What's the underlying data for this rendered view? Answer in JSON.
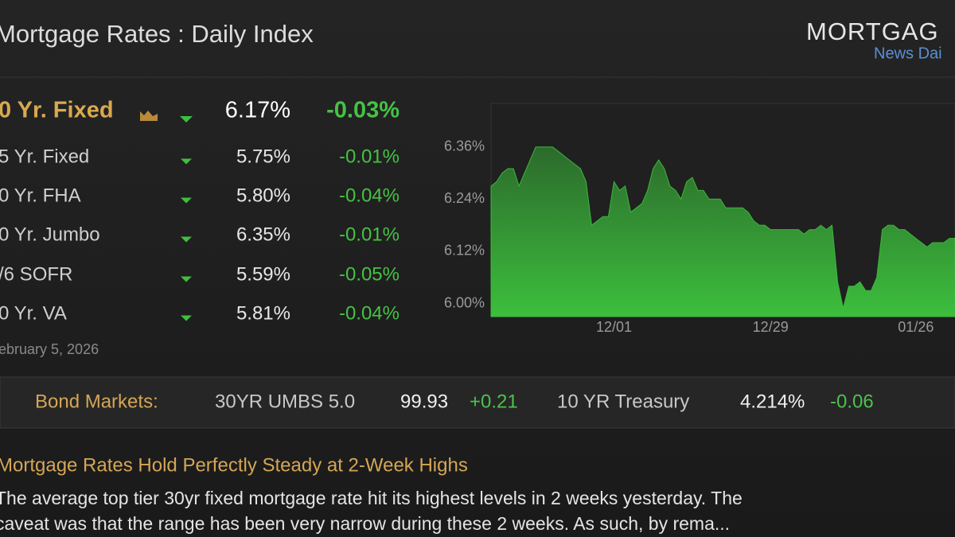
{
  "header": {
    "title": "Mortgage Rates : Daily Index",
    "logo": {
      "brand": "MORTGAG",
      "sub": "News Dai"
    }
  },
  "rates": {
    "rows": [
      {
        "name": "0 Yr. Fixed",
        "rate": "6.17%",
        "change": "-0.03%"
      },
      {
        "name": "5 Yr. Fixed",
        "rate": "5.75%",
        "change": "-0.01%"
      },
      {
        "name": "0 Yr. FHA",
        "rate": "5.80%",
        "change": "-0.04%"
      },
      {
        "name": "0 Yr. Jumbo",
        "rate": "6.35%",
        "change": "-0.01%"
      },
      {
        "name": "/6 SOFR",
        "rate": "5.59%",
        "change": "-0.05%"
      },
      {
        "name": "0 Yr. VA",
        "rate": "5.81%",
        "change": "-0.04%"
      }
    ]
  },
  "date": "ebruary 5, 2026",
  "chart_data": {
    "type": "area",
    "ylim": [
      5.97,
      6.46
    ],
    "yticks": [
      {
        "value": 6.0,
        "label": "6.00%"
      },
      {
        "value": 6.12,
        "label": "6.12%"
      },
      {
        "value": 6.24,
        "label": "6.24%"
      },
      {
        "value": 6.36,
        "label": "6.36%"
      }
    ],
    "xlim": [
      0,
      83
    ],
    "xticks": [
      {
        "value": 22,
        "label": "12/01"
      },
      {
        "value": 50,
        "label": "12/29"
      },
      {
        "value": 76,
        "label": "01/26"
      }
    ],
    "series": [
      {
        "color": "#3cb83c",
        "values": [
          6.27,
          6.28,
          6.3,
          6.31,
          6.31,
          6.27,
          6.3,
          6.33,
          6.36,
          6.36,
          6.36,
          6.36,
          6.35,
          6.34,
          6.33,
          6.32,
          6.31,
          6.28,
          6.18,
          6.19,
          6.2,
          6.2,
          6.28,
          6.26,
          6.27,
          6.21,
          6.22,
          6.23,
          6.26,
          6.31,
          6.33,
          6.31,
          6.27,
          6.26,
          6.24,
          6.28,
          6.29,
          6.26,
          6.26,
          6.24,
          6.24,
          6.24,
          6.22,
          6.22,
          6.22,
          6.22,
          6.21,
          6.19,
          6.18,
          6.18,
          6.17,
          6.17,
          6.17,
          6.17,
          6.17,
          6.17,
          6.16,
          6.17,
          6.17,
          6.18,
          6.17,
          6.18,
          6.05,
          5.99,
          6.04,
          6.04,
          6.05,
          6.03,
          6.03,
          6.06,
          6.17,
          6.18,
          6.18,
          6.17,
          6.17,
          6.16,
          6.15,
          6.14,
          6.13,
          6.14,
          6.14,
          6.14,
          6.15,
          6.15
        ]
      }
    ]
  },
  "bond_markets": {
    "label": "Bond Markets:",
    "items": [
      {
        "name": "30YR UMBS 5.0",
        "value": "99.93",
        "change": "+0.21"
      },
      {
        "name": "10 YR Treasury",
        "value": "4.214%",
        "change": "-0.06"
      }
    ]
  },
  "article": {
    "headline": "Mortgage Rates Hold Perfectly Steady at 2-Week Highs",
    "body_lines": [
      "The average top tier 30yr fixed mortgage rate hit its highest levels in 2 weeks yesterday. The",
      "caveat was that the range has been very narrow during these 2 weeks. As such, by rema..."
    ]
  }
}
